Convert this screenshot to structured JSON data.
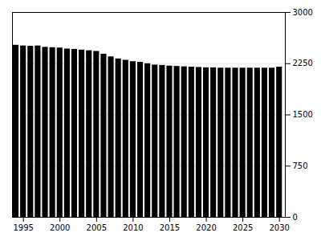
{
  "chart_data": {
    "type": "bar",
    "x": [
      1994,
      1995,
      1996,
      1997,
      1998,
      1999,
      2000,
      2001,
      2002,
      2003,
      2004,
      2005,
      2006,
      2007,
      2008,
      2009,
      2010,
      2011,
      2012,
      2013,
      2014,
      2015,
      2016,
      2017,
      2018,
      2019,
      2020,
      2021,
      2022,
      2023,
      2024,
      2025,
      2026,
      2027,
      2028,
      2029,
      2030
    ],
    "values": [
      2520,
      2510,
      2505,
      2510,
      2490,
      2485,
      2480,
      2465,
      2460,
      2450,
      2440,
      2430,
      2390,
      2350,
      2320,
      2300,
      2280,
      2270,
      2250,
      2230,
      2225,
      2215,
      2210,
      2205,
      2200,
      2195,
      2190,
      2190,
      2185,
      2185,
      2185,
      2185,
      2185,
      2185,
      2185,
      2185,
      2200
    ],
    "xlim": [
      1993.5,
      2030.8
    ],
    "xticks": [
      1995,
      2000,
      2005,
      2010,
      2015,
      2020,
      2025,
      2030
    ],
    "ylim": [
      0,
      3000
    ],
    "yticks": [
      0,
      750,
      1500,
      2250,
      3000
    ],
    "grid": true
  }
}
